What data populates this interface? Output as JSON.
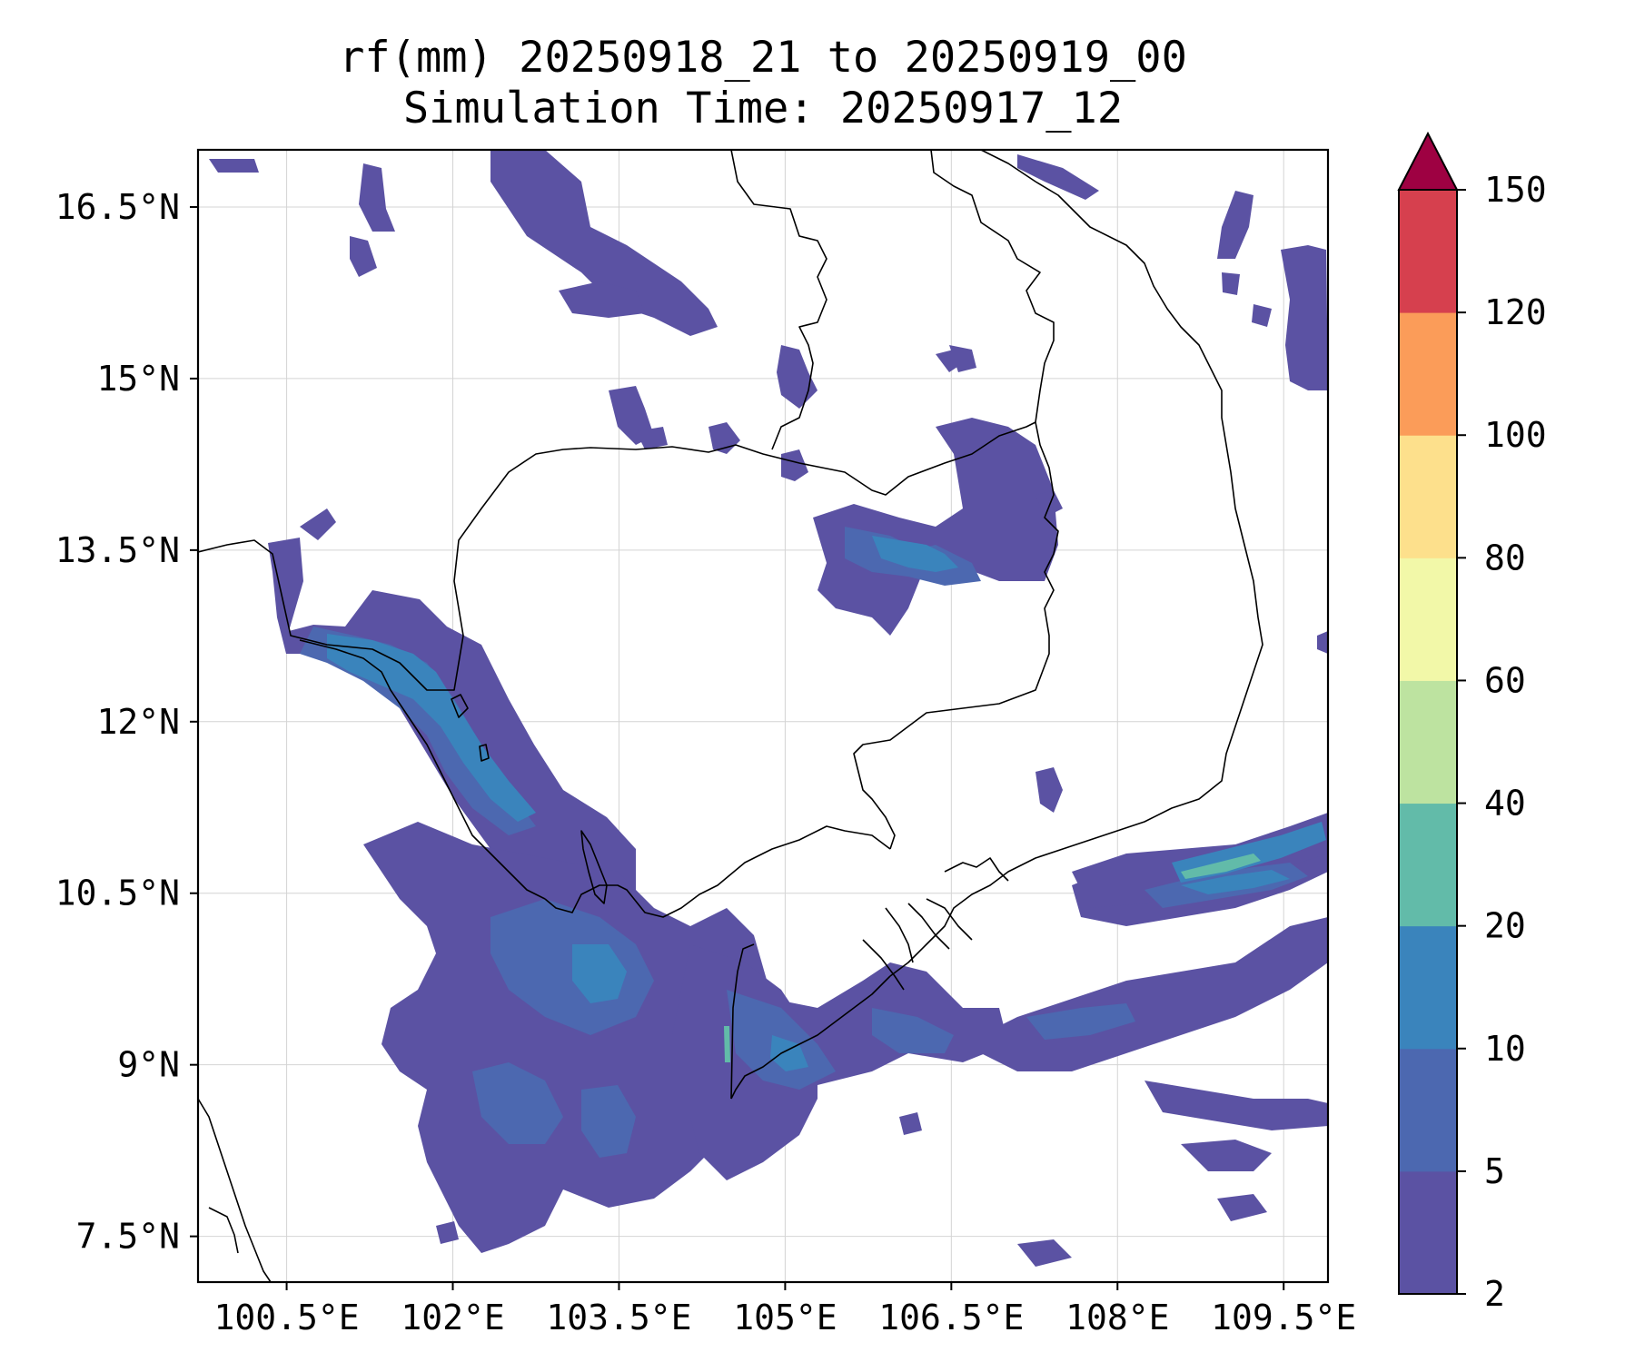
{
  "title": {
    "line1": "rf(mm) 20250918_21 to 20250919_00",
    "line2": "Simulation Time: 20250917_12"
  },
  "map": {
    "lon_range": [
      99.7,
      109.9
    ],
    "lat_range": [
      7.1,
      17.0
    ],
    "lon_ticks": [
      100.5,
      102,
      103.5,
      105,
      106.5,
      108,
      109.5
    ],
    "lon_tick_labels": [
      "100.5°E",
      "102°E",
      "103.5°E",
      "105°E",
      "106.5°E",
      "108°E",
      "109.5°E"
    ],
    "lat_ticks": [
      7.5,
      9,
      10.5,
      12,
      13.5,
      15,
      16.5
    ],
    "lat_tick_labels": [
      "7.5°N",
      "9°N",
      "10.5°N",
      "12°N",
      "13.5°N",
      "15°N",
      "16.5°N"
    ],
    "gridlines": true
  },
  "colorbar": {
    "levels": [
      2,
      5,
      10,
      20,
      40,
      60,
      80,
      100,
      120,
      150
    ],
    "labels": [
      "2",
      "5",
      "10",
      "20",
      "40",
      "60",
      "80",
      "100",
      "120",
      "150"
    ],
    "colors": [
      "#5b52a3",
      "#4c68b0",
      "#3a84bc",
      "#62bba9",
      "#bde3a0",
      "#f2f8a8",
      "#fde08c",
      "#fb9c59",
      "#d6404e"
    ],
    "extend_color": "#9e0142",
    "extend": "max"
  },
  "rain_colors": {
    "light": "#5b52a3",
    "moderate": "#4c68b0",
    "heavy": "#3a84bc",
    "intense": "#62bba9",
    "very_intense": "#bde3a0"
  }
}
